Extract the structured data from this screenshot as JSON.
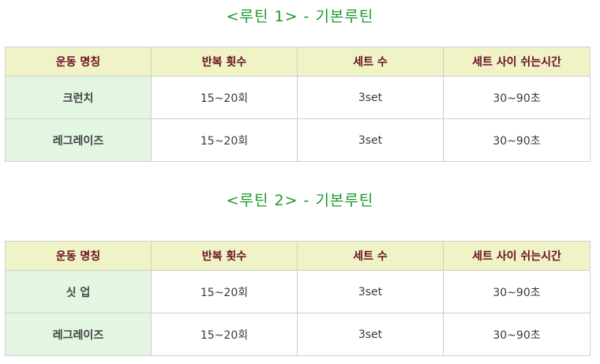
{
  "routines": [
    {
      "title": "<루틴 1> - 기본루틴",
      "headers": [
        "운동 명칭",
        "반복 횟수",
        "세트 수",
        "세트 사이 쉬는시간"
      ],
      "rows": [
        [
          "크런치",
          "15~20회",
          "3set",
          "30~90초"
        ],
        [
          "레그레이즈",
          "15~20회",
          "3set",
          "30~90초"
        ]
      ]
    },
    {
      "title": "<루틴 2> - 기본루틴",
      "headers": [
        "운동 명칭",
        "반복 횟수",
        "세트 수",
        "세트 사이 쉬는시간"
      ],
      "rows": [
        [
          "싯 업",
          "15~20회",
          "3set",
          "30~90초"
        ],
        [
          "레그레이즈",
          "15~20회",
          "3set",
          "30~90초"
        ]
      ]
    }
  ],
  "colors": {
    "title": "#1a9a2a",
    "header_bg": "#eff3c6",
    "header_text": "#6b0f22",
    "name_cell_bg": "#e2f6e2",
    "border": "#cfcfcf"
  }
}
